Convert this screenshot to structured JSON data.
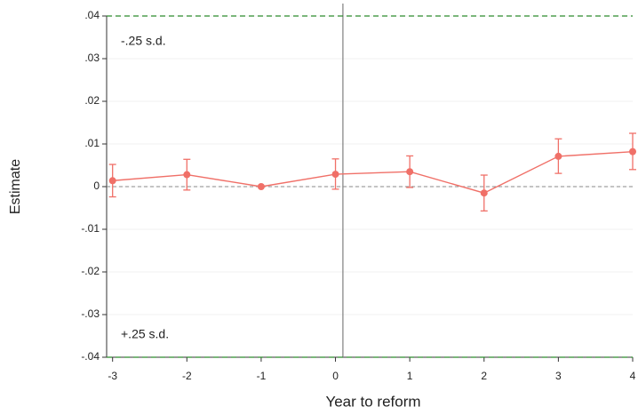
{
  "chart_data": {
    "type": "line",
    "x_label": "Year to reform",
    "y_label": "Estimate",
    "x": [
      -3,
      -2,
      -1,
      0,
      1,
      2,
      3,
      4
    ],
    "series": [
      {
        "name": "Estimate",
        "color": "#f07068",
        "values": [
          0.0014,
          0.0028,
          0,
          0.0029,
          0.0035,
          -0.0015,
          0.0071,
          0.0082
        ],
        "lower": [
          -0.0024,
          -0.0008,
          0,
          -0.0006,
          -0.0002,
          -0.0057,
          0.0031,
          0.004
        ],
        "upper": [
          0.0052,
          0.0064,
          0,
          0.0065,
          0.0072,
          0.0027,
          0.0112,
          0.0125
        ]
      }
    ],
    "xlim": [
      -3.08,
      4
    ],
    "ylim": [
      -0.04,
      0.04
    ],
    "xticks": [
      -3,
      -2,
      -1,
      0,
      1,
      2,
      3,
      4
    ],
    "yticks": [
      {
        "value": -0.04,
        "label": "-.04"
      },
      {
        "value": -0.03,
        "label": "-.03"
      },
      {
        "value": -0.02,
        "label": "-.02"
      },
      {
        "value": -0.01,
        "label": "-.01"
      },
      0,
      {
        "value": 0.01,
        "label": ".01"
      },
      {
        "value": 0.02,
        "label": ".02"
      },
      {
        "value": 0.03,
        "label": ".03"
      },
      {
        "value": 0.04,
        "label": ".04"
      }
    ],
    "grid": true,
    "vline_x": 0.1,
    "zero_line": 0,
    "ref_lines": [
      {
        "value": 0.04,
        "label": "-.25 s.d."
      },
      {
        "value": -0.04,
        "label": "+.25 s.d."
      }
    ],
    "ref_color": "#2a8a2a"
  }
}
